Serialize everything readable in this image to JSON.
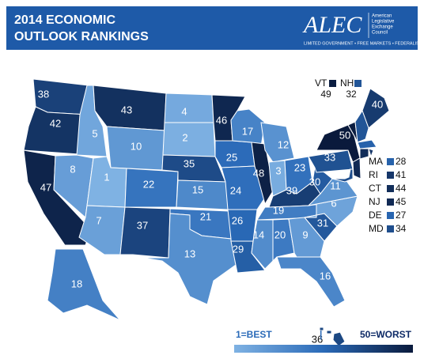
{
  "header": {
    "title": [
      "2014 ECONOMIC",
      "OUTLOOK RANKINGS"
    ],
    "logo": "ALEC",
    "logo_name": [
      "American",
      "Legislative",
      "Exchange",
      "Council"
    ],
    "tagline": "LIMITED GOVERNMENT • FREE MARKETS • FEDERALISM"
  },
  "states": [
    {
      "rank": 38
    },
    {
      "rank": 42
    },
    {
      "rank": 47
    },
    {
      "rank": 5
    },
    {
      "rank": 8
    },
    {
      "rank": 43
    },
    {
      "rank": 10
    },
    {
      "rank": 1
    },
    {
      "rank": 7
    },
    {
      "rank": 22
    },
    {
      "rank": 37
    },
    {
      "rank": 4
    },
    {
      "rank": 2
    },
    {
      "rank": 35
    },
    {
      "rank": 15
    },
    {
      "rank": 21
    },
    {
      "rank": 13
    },
    {
      "rank": 46
    },
    {
      "rank": 25
    },
    {
      "rank": 24
    },
    {
      "rank": 26
    },
    {
      "rank": 29
    },
    {
      "rank": 17
    },
    {
      "rank": 48
    },
    {
      "rank": 12
    },
    {
      "rank": 3
    },
    {
      "rank": 23
    },
    {
      "rank": 39
    },
    {
      "rank": 19
    },
    {
      "rank": 14
    },
    {
      "rank": 20
    },
    {
      "rank": 9
    },
    {
      "rank": 16
    },
    {
      "rank": 31
    },
    {
      "rank": 6
    },
    {
      "rank": 11
    },
    {
      "rank": 30
    },
    {
      "rank": 33
    },
    {
      "rank": 50
    },
    {
      "rank": 40
    },
    {
      "rank": 18
    },
    {
      "rank": 36
    },
    {
      "abbr": "VT",
      "rank": 49
    },
    {
      "abbr": "NH",
      "rank": 32
    },
    {
      "abbr": "MA",
      "rank": 28
    },
    {
      "abbr": "RI",
      "rank": 41
    },
    {
      "abbr": "CT",
      "rank": 44
    },
    {
      "abbr": "NJ",
      "rank": 45
    },
    {
      "abbr": "DE",
      "rank": 27
    },
    {
      "abbr": "MD",
      "rank": 34
    }
  ],
  "legend": {
    "low": "1=BEST",
    "divider": "|",
    "high": "50=WORST"
  }
}
